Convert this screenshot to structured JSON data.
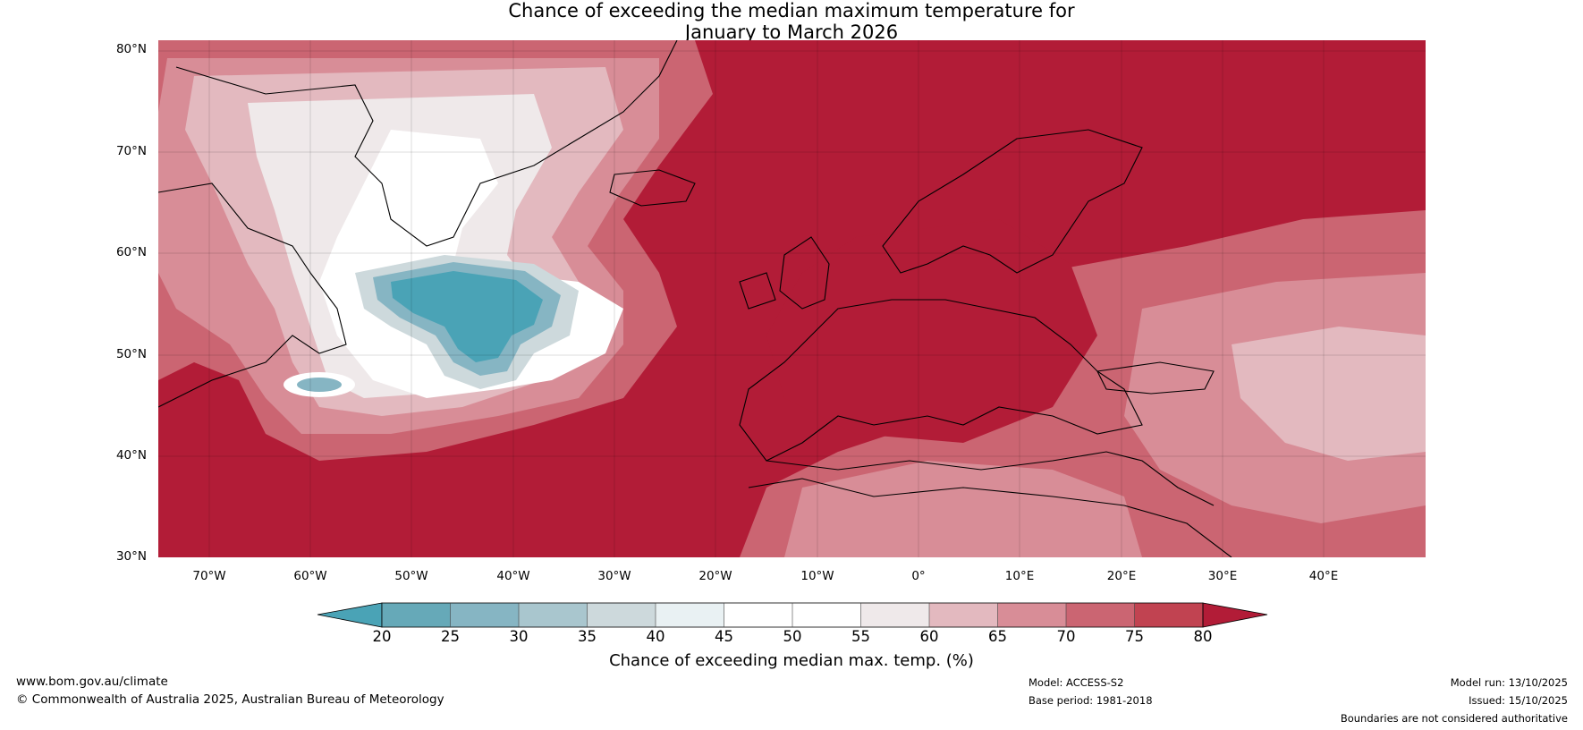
{
  "title": {
    "line1": "Chance of exceeding the median maximum temperature for",
    "line2": "January to March 2026"
  },
  "map": {
    "latitude_labels": [
      "80°N",
      "70°N",
      "60°N",
      "50°N",
      "40°N",
      "30°N"
    ],
    "longitude_labels": [
      "70°W",
      "60°W",
      "50°W",
      "40°W",
      "30°W",
      "20°W",
      "10°W",
      "0°",
      "10°E",
      "20°E",
      "30°E",
      "40°E"
    ]
  },
  "colorbar": {
    "ticks": [
      "20",
      "25",
      "30",
      "35",
      "40",
      "45",
      "50",
      "55",
      "60",
      "65",
      "70",
      "75",
      "80"
    ],
    "colors": {
      "below_20": "#4aa3b6",
      "c20_25": "#66a9b8",
      "c25_30": "#86b5c3",
      "c30_35": "#a9c6ce",
      "c35_40": "#cdd9dc",
      "c40_45": "#e9f1f3",
      "c45_50": "#ffffff",
      "c50_55": "#ffffff",
      "c55_60": "#efe9ea",
      "c60_65": "#e3b9bf",
      "c65_70": "#d88d97",
      "c70_75": "#cb6572",
      "c75_80": "#c14351",
      "above_80": "#b21c37"
    },
    "label": "Chance of exceeding median max. temp. (%)"
  },
  "footer": {
    "website": "www.bom.gov.au/climate",
    "copyright": "© Commonwealth of Australia 2025, Australian Bureau of Meteorology",
    "model": "Model: ACCESS-S2",
    "base_period": "Base period: 1981-2018",
    "model_run": "Model run: 13/10/2025",
    "issued": "Issued: 15/10/2025",
    "disclaimer": "Boundaries are not considered authoritative"
  }
}
